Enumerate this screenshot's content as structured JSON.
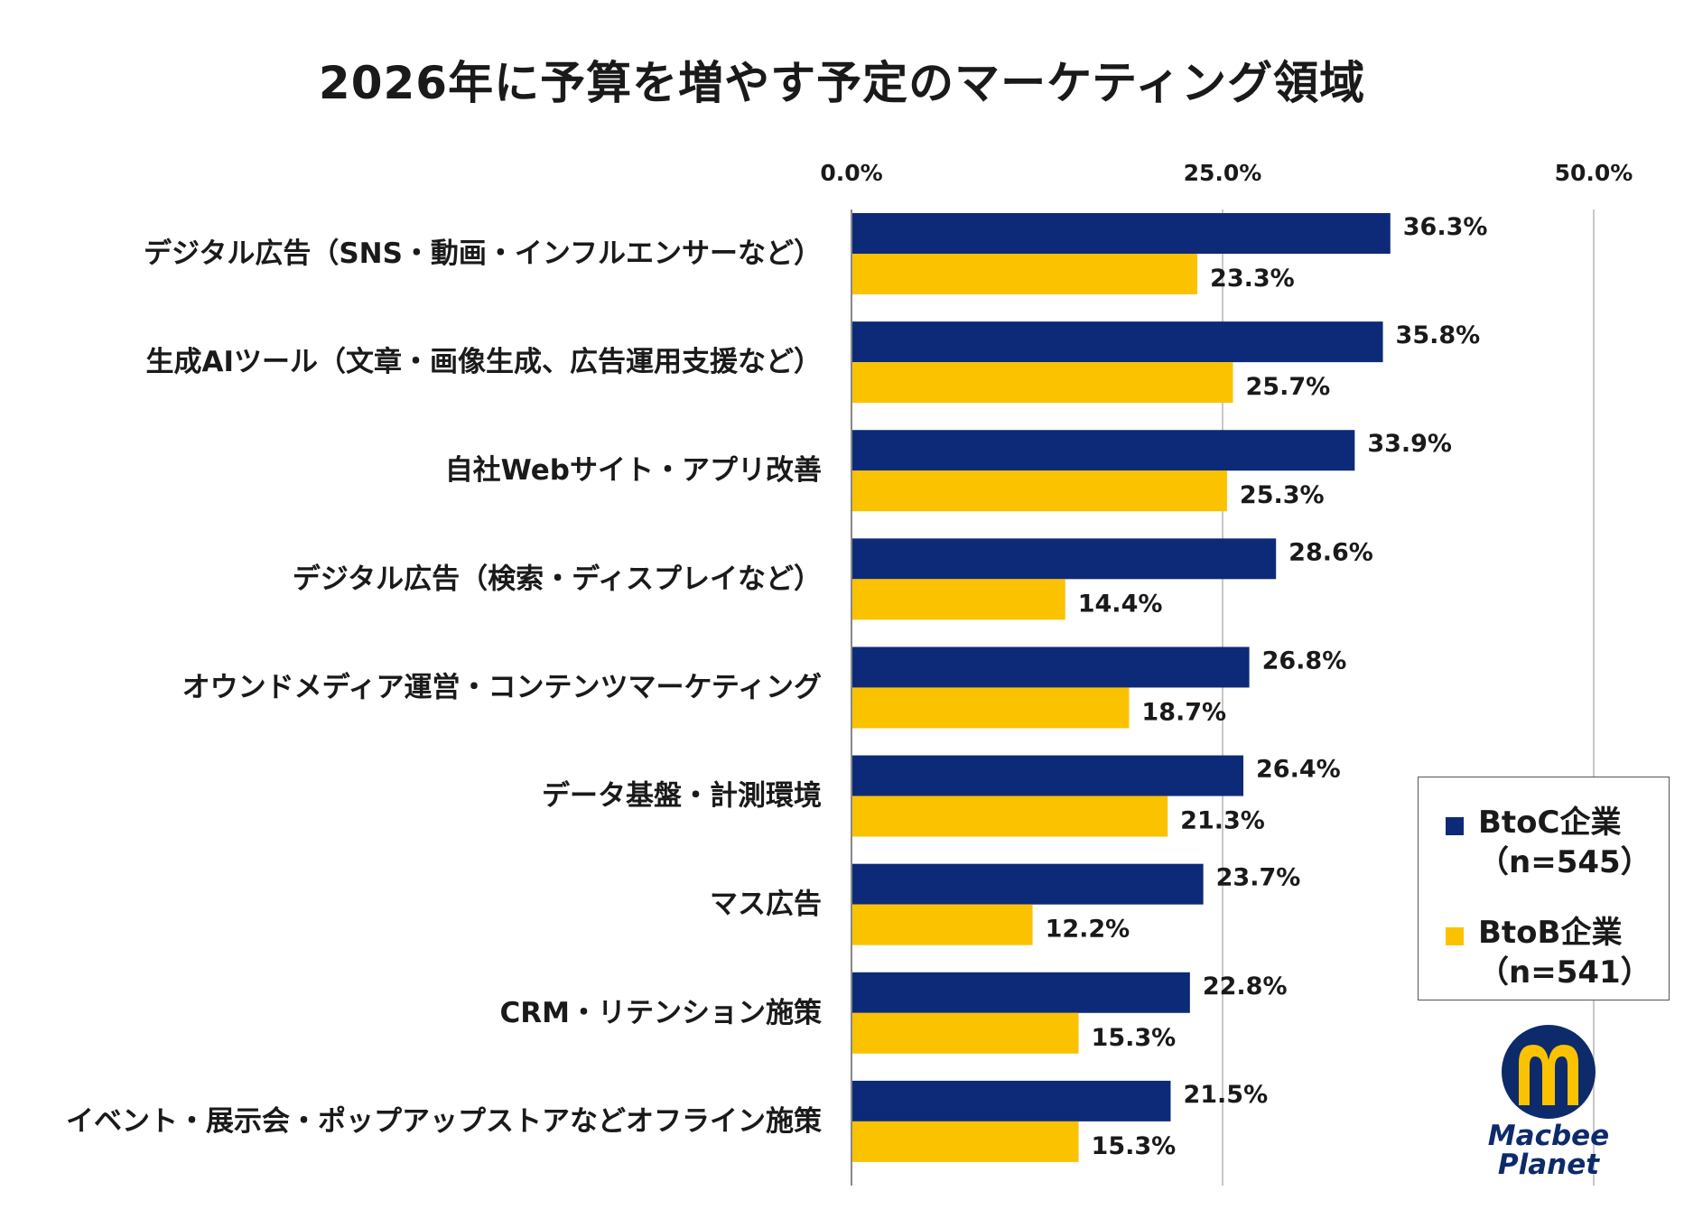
{
  "chart_data": {
    "type": "bar",
    "orientation": "horizontal",
    "title": "2026年に予算を増やす予定のマーケティング領域",
    "xlim": [
      0,
      50
    ],
    "ticks": [
      "0.0%",
      "25.0%",
      "50.0%"
    ],
    "tick_values": [
      0,
      25,
      50
    ],
    "categories": [
      "デジタル広告（SNS・動画・インフルエンサーなど）",
      "生成AIツール（文章・画像生成、広告運用支援など）",
      "自社Webサイト・アプリ改善",
      "デジタル広告（検索・ディスプレイなど）",
      "オウンドメディア運営・コンテンツマーケティング",
      "データ基盤・計測環境",
      "マス広告",
      "CRM・リテンション施策",
      "イベント・展示会・ポップアップストアなどオフライン施策"
    ],
    "series": [
      {
        "name": "BtoC企業\n（n=545）",
        "color": "#0d2a78",
        "values": [
          36.3,
          35.8,
          33.9,
          28.6,
          26.8,
          26.4,
          23.7,
          22.8,
          21.5
        ],
        "labels": [
          "36.3%",
          "35.8%",
          "33.9%",
          "28.6%",
          "26.8%",
          "26.4%",
          "23.7%",
          "22.8%",
          "21.5%"
        ]
      },
      {
        "name": "BtoB企業\n（n=541）",
        "color": "#fbc200",
        "values": [
          23.3,
          25.7,
          25.3,
          14.4,
          18.7,
          21.3,
          12.2,
          15.3,
          15.3
        ],
        "labels": [
          "23.3%",
          "25.7%",
          "25.3%",
          "14.4%",
          "18.7%",
          "21.3%",
          "12.2%",
          "15.3%",
          "15.3%"
        ]
      }
    ],
    "legend": "right"
  },
  "logo": {
    "line1": "Macbee",
    "line2": "Planet",
    "color": "#0d2a6b",
    "accent": "#fbc200"
  }
}
